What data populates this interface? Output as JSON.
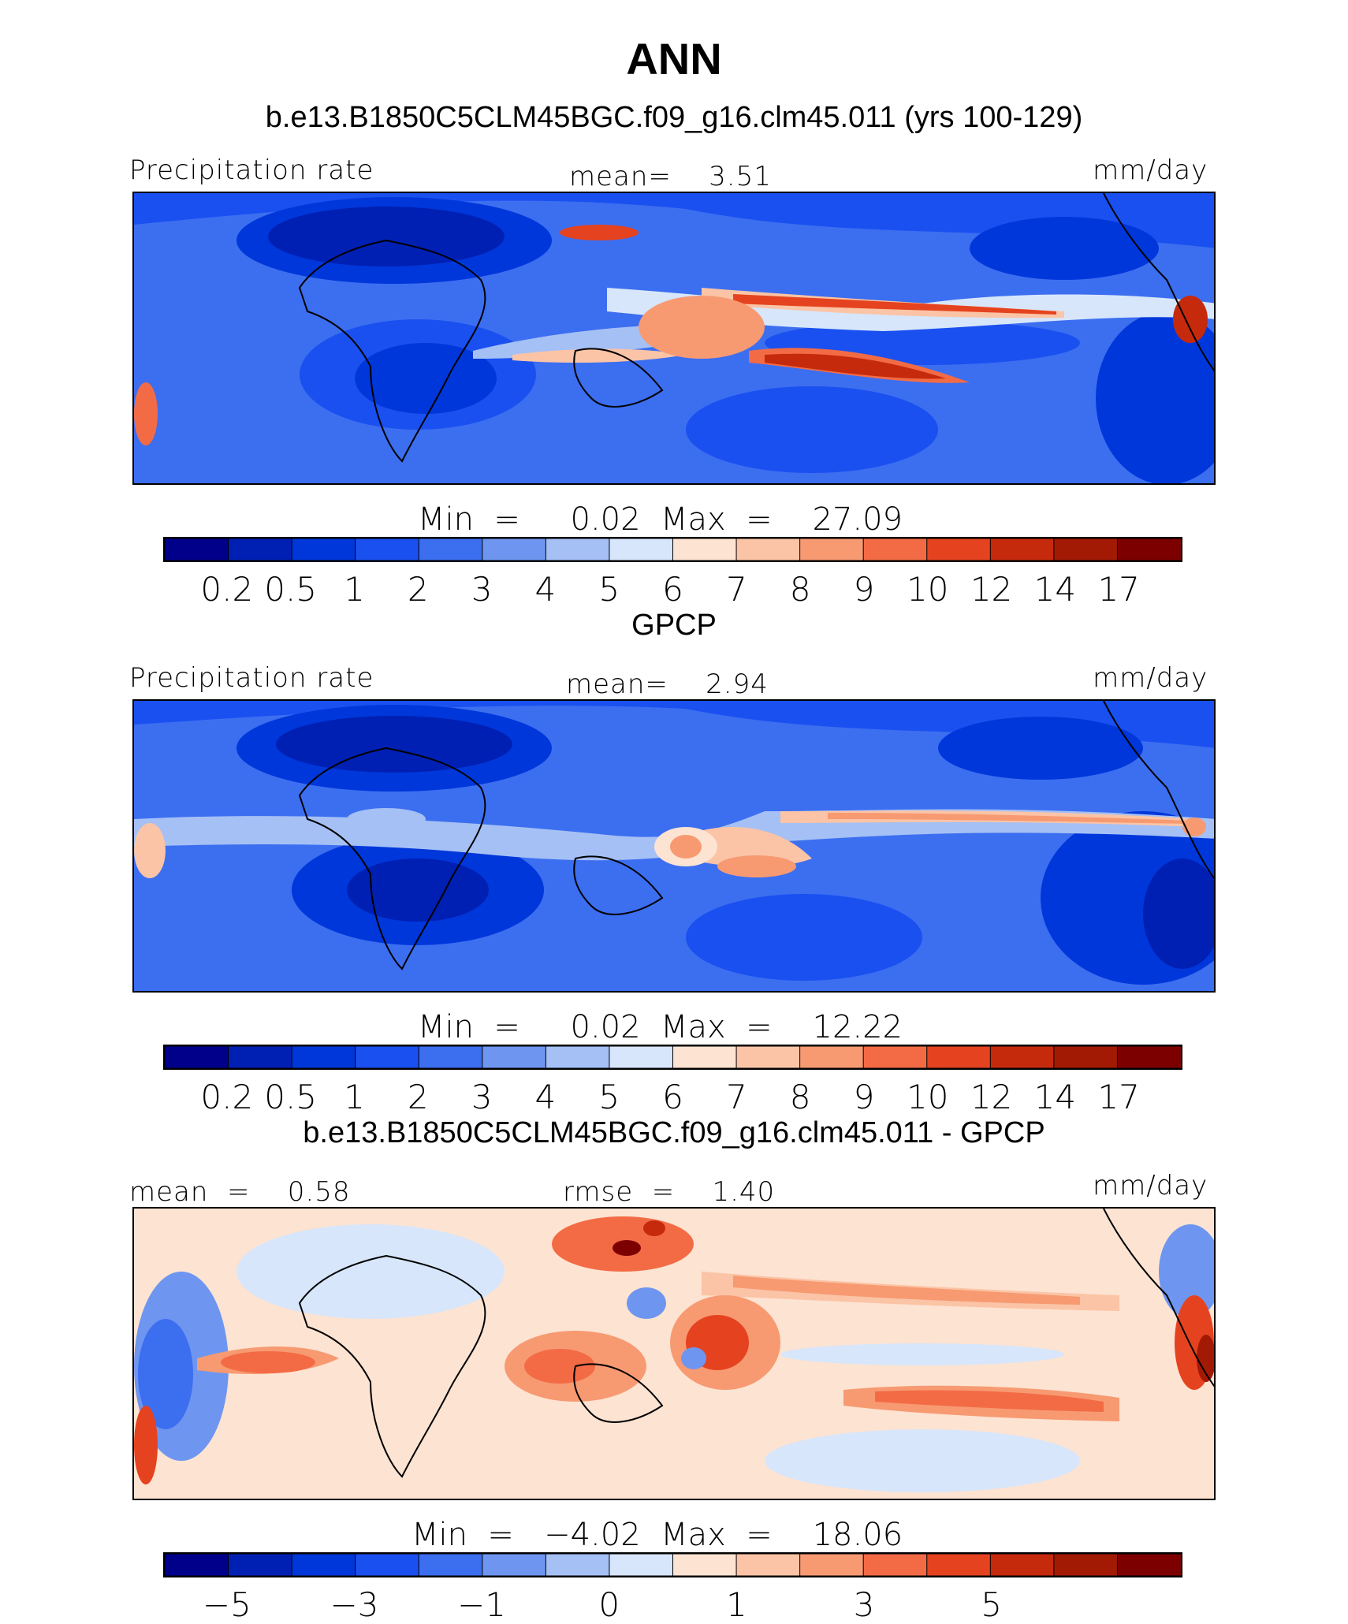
{
  "title": "ANN",
  "panels": [
    {
      "heading": "b.e13.B1850C5CLM45BGC.f09_g16.clm45.011 (yrs 100-129)",
      "left_label": "Precipitation rate",
      "center_label": "mean=    3.51",
      "right_label": "mm/day",
      "minmax": "Min  =     0.02  Max  =    27.09"
    },
    {
      "heading": "GPCP",
      "left_label": "Precipitation rate",
      "center_label": "mean=    2.94",
      "right_label": "mm/day",
      "minmax": "Min  =     0.02  Max  =    12.22"
    },
    {
      "heading": "b.e13.B1850C5CLM45BGC.f09_g16.clm45.011 - GPCP",
      "left_label": "mean  =    0.58",
      "center_label": "rmse  =    1.40",
      "right_label": "mm/day",
      "minmax": "Min  =   −4.02  Max  =    18.06"
    }
  ],
  "chart_data": [
    {
      "type": "heatmap",
      "title": "b.e13.B1850C5CLM45BGC.f09_g16.clm45.011 (yrs 100-129)",
      "variable": "Precipitation rate",
      "units": "mm/day",
      "mean": 3.51,
      "min": 0.02,
      "max": 27.09,
      "colorbar_levels": [
        "0.2",
        "0.5",
        "1",
        "2",
        "3",
        "4",
        "5",
        "6",
        "7",
        "8",
        "9",
        "10",
        "12",
        "14",
        "17"
      ]
    },
    {
      "type": "heatmap",
      "title": "GPCP",
      "variable": "Precipitation rate",
      "units": "mm/day",
      "mean": 2.94,
      "min": 0.02,
      "max": 12.22,
      "colorbar_levels": [
        "0.2",
        "0.5",
        "1",
        "2",
        "3",
        "4",
        "5",
        "6",
        "7",
        "8",
        "9",
        "10",
        "12",
        "14",
        "17"
      ]
    },
    {
      "type": "heatmap",
      "title": "b.e13.B1850C5CLM45BGC.f09_g16.clm45.011 - GPCP",
      "units": "mm/day",
      "mean": 0.58,
      "rmse": 1.4,
      "min": -4.02,
      "max": 18.06,
      "colorbar_levels": [
        "−5",
        "−3",
        "−1",
        "0",
        "1",
        "3",
        "5"
      ]
    }
  ],
  "colors": [
    "#00008b",
    "#0020b4",
    "#0037da",
    "#1a50f0",
    "#3c6ef0",
    "#6e96f0",
    "#a5c0f5",
    "#d7e6fa",
    "#fde3d2",
    "#fbc4a6",
    "#f79a72",
    "#f36b45",
    "#e5431f",
    "#c62a0c",
    "#a31a04",
    "#7d0000"
  ]
}
